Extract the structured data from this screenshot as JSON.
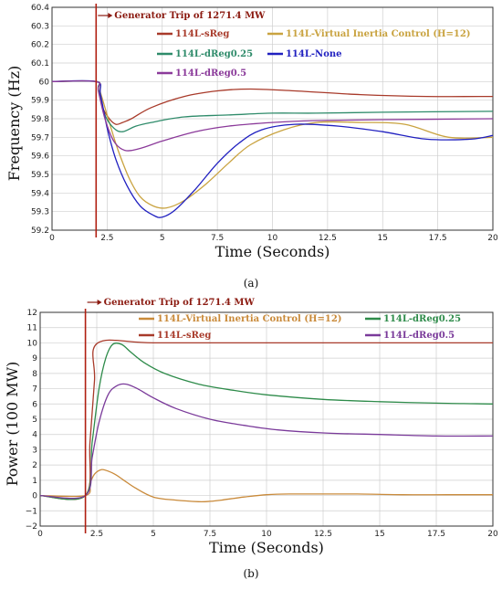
{
  "chart_data": [
    {
      "type": "line",
      "panel_label": "(a)",
      "xlabel": "Time (Seconds)",
      "ylabel": "Frequency (Hz)",
      "xlim": [
        0,
        20
      ],
      "ylim": [
        59.2,
        60.4
      ],
      "xticks": [
        "0",
        "2.5",
        "5",
        "7.5",
        "10",
        "12.5",
        "15",
        "17.5",
        "20"
      ],
      "yticks": [
        "59.2",
        "59.3",
        "59.4",
        "59.5",
        "59.6",
        "59.7",
        "59.8",
        "59.9",
        "60",
        "60.1",
        "60.2",
        "60.3",
        "60.4"
      ],
      "grid": true,
      "legend": "top",
      "annotation": {
        "text": "Generator Trip of 1271.4 MW",
        "x": 2.0
      },
      "series": [
        {
          "name": "114L-sReg",
          "color": "#a83a2a",
          "x": [
            0,
            2.0,
            2.1,
            2.3,
            2.6,
            2.9,
            3.2,
            3.6,
            4.5,
            6,
            7.5,
            9,
            11,
            14,
            17,
            20
          ],
          "y": [
            60,
            60,
            59.96,
            59.86,
            59.8,
            59.77,
            59.78,
            59.8,
            59.86,
            59.92,
            59.95,
            59.96,
            59.95,
            59.93,
            59.92,
            59.92
          ]
        },
        {
          "name": "114L-Virtual Inertia Control (H=12)",
          "color": "#c9a340",
          "x": [
            0,
            2.0,
            2.2,
            2.6,
            3.0,
            3.5,
            4.0,
            4.6,
            5.2,
            6.0,
            7.0,
            8.0,
            9.0,
            10.5,
            12,
            14,
            16,
            18,
            20
          ],
          "y": [
            60,
            60,
            59.94,
            59.78,
            59.63,
            59.48,
            59.38,
            59.33,
            59.32,
            59.36,
            59.45,
            59.56,
            59.66,
            59.74,
            59.78,
            59.78,
            59.77,
            59.7,
            59.7
          ]
        },
        {
          "name": "114L-dReg0.25",
          "color": "#2e8b6a",
          "x": [
            0,
            2.0,
            2.1,
            2.4,
            2.8,
            3.2,
            3.8,
            4.5,
            6,
            8,
            10,
            12,
            15,
            20
          ],
          "y": [
            60,
            60,
            59.96,
            59.82,
            59.75,
            59.73,
            59.76,
            59.78,
            59.81,
            59.82,
            59.83,
            59.83,
            59.835,
            59.84
          ]
        },
        {
          "name": "114L-None",
          "color": "#2020c0",
          "x": [
            0,
            2.0,
            2.2,
            2.5,
            2.9,
            3.4,
            4.0,
            4.6,
            5.0,
            5.6,
            6.5,
            7.5,
            8.5,
            9.5,
            11,
            13,
            15,
            17,
            19,
            20
          ],
          "y": [
            60,
            60,
            59.93,
            59.75,
            59.58,
            59.44,
            59.33,
            59.28,
            59.27,
            59.31,
            59.42,
            59.56,
            59.67,
            59.74,
            59.77,
            59.76,
            59.73,
            59.69,
            59.69,
            59.71
          ]
        },
        {
          "name": "114L-dReg0.5",
          "color": "#8b3a9a",
          "x": [
            0,
            2.0,
            2.1,
            2.4,
            2.8,
            3.3,
            4.0,
            5.0,
            6.5,
            8,
            10,
            12,
            15,
            20
          ],
          "y": [
            60,
            60,
            59.95,
            59.8,
            59.68,
            59.63,
            59.64,
            59.68,
            59.73,
            59.76,
            59.78,
            59.79,
            59.795,
            59.8
          ]
        }
      ]
    },
    {
      "type": "line",
      "panel_label": "(b)",
      "xlabel": "Time (Seconds)",
      "ylabel": "Power (100 MW)",
      "xlim": [
        0,
        20
      ],
      "ylim": [
        -2,
        12
      ],
      "xticks": [
        "0",
        "2.5",
        "5",
        "7.5",
        "10",
        "12.5",
        "15",
        "17.5",
        "20"
      ],
      "yticks": [
        "−2",
        "−1",
        "0",
        "1",
        "2",
        "3",
        "4",
        "5",
        "6",
        "7",
        "8",
        "9",
        "10",
        "11",
        "12"
      ],
      "grid": true,
      "legend": "top",
      "annotation": {
        "text": "Generator Trip of 1271.4 MW",
        "x": 2.0
      },
      "series": [
        {
          "name": "114L-Virtual Inertia Control (H=12)",
          "color": "#c98a3a",
          "x": [
            0,
            2.0,
            2.2,
            2.4,
            2.7,
            3.0,
            3.3,
            3.7,
            4.2,
            5.0,
            6.0,
            7.0,
            7.5,
            8.0,
            9.0,
            10.0,
            11.0,
            12.5,
            14,
            16,
            18,
            20
          ],
          "y": [
            0,
            0,
            0.8,
            1.4,
            1.7,
            1.6,
            1.4,
            1.0,
            0.5,
            -0.1,
            -0.3,
            -0.4,
            -0.38,
            -0.3,
            -0.1,
            0.05,
            0.1,
            0.1,
            0.1,
            0.05,
            0.05,
            0.05
          ]
        },
        {
          "name": "114L-sReg",
          "color": "#a83a2a",
          "x": [
            0,
            2.0,
            2.2,
            2.4,
            2.55,
            5,
            10,
            15,
            20
          ],
          "y": [
            0,
            0,
            3.5,
            7.5,
            10,
            10,
            10,
            10,
            10
          ]
        },
        {
          "name": "114L-dReg0.25",
          "color": "#2e8b4a",
          "x": [
            0,
            2.0,
            2.3,
            2.6,
            2.9,
            3.2,
            3.6,
            4.0,
            4.6,
            5.5,
            7.0,
            8.5,
            10,
            12.5,
            15,
            17.5,
            20
          ],
          "y": [
            0,
            0,
            3.5,
            7.0,
            9.0,
            9.9,
            9.9,
            9.4,
            8.7,
            8.0,
            7.3,
            6.9,
            6.6,
            6.3,
            6.15,
            6.05,
            6.0
          ]
        },
        {
          "name": "114L-dReg0.5",
          "color": "#7a3a9a",
          "x": [
            0,
            2.0,
            2.3,
            2.6,
            3.0,
            3.4,
            3.8,
            4.3,
            5.0,
            6.0,
            7.5,
            9.0,
            10.5,
            12.5,
            15,
            17.5,
            20
          ],
          "y": [
            0,
            0,
            2.5,
            4.8,
            6.6,
            7.2,
            7.3,
            7.0,
            6.4,
            5.7,
            5.0,
            4.6,
            4.3,
            4.1,
            4.0,
            3.9,
            3.9
          ]
        }
      ]
    }
  ]
}
